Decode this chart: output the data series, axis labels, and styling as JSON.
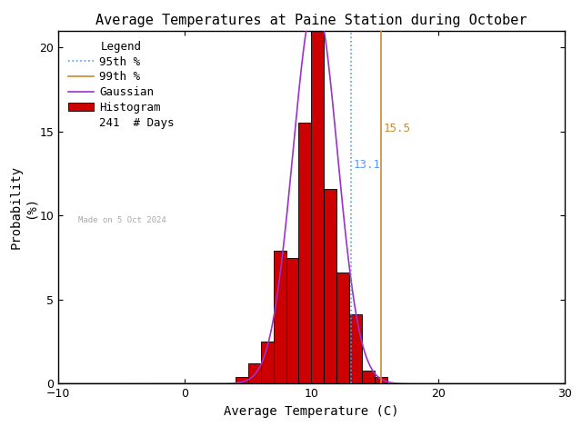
{
  "title": "Average Temperatures at Paine Station during October",
  "xlabel": "Average Temperature (C)",
  "ylabel": "Probability\n(%)",
  "xlim": [
    -10,
    30
  ],
  "ylim": [
    0,
    21
  ],
  "xticks": [
    -10,
    0,
    10,
    20,
    30
  ],
  "yticks": [
    0,
    5,
    10,
    15,
    20
  ],
  "bin_edges": [
    4,
    5,
    6,
    7,
    8,
    9,
    10,
    11,
    12,
    13,
    14,
    15,
    16
  ],
  "bin_heights": [
    0.4,
    1.2,
    2.5,
    7.9,
    7.5,
    15.5,
    21.1,
    11.6,
    6.6,
    4.1,
    0.8,
    0.4,
    0.0
  ],
  "mean": 10.3,
  "std": 1.75,
  "percentile_95": 13.1,
  "percentile_99": 15.5,
  "n_days": 241,
  "hist_color": "#cc0000",
  "hist_edge_color": "#000000",
  "gaussian_color": "#9933cc",
  "p95_color": "#5599ff",
  "p99_color": "#cc8833",
  "title_fontsize": 11,
  "axis_label_fontsize": 10,
  "tick_fontsize": 9,
  "legend_fontsize": 9,
  "made_on_text": "Made on 5 Oct 2024",
  "made_on_color": "#aaaaaa",
  "background_color": "#ffffff"
}
